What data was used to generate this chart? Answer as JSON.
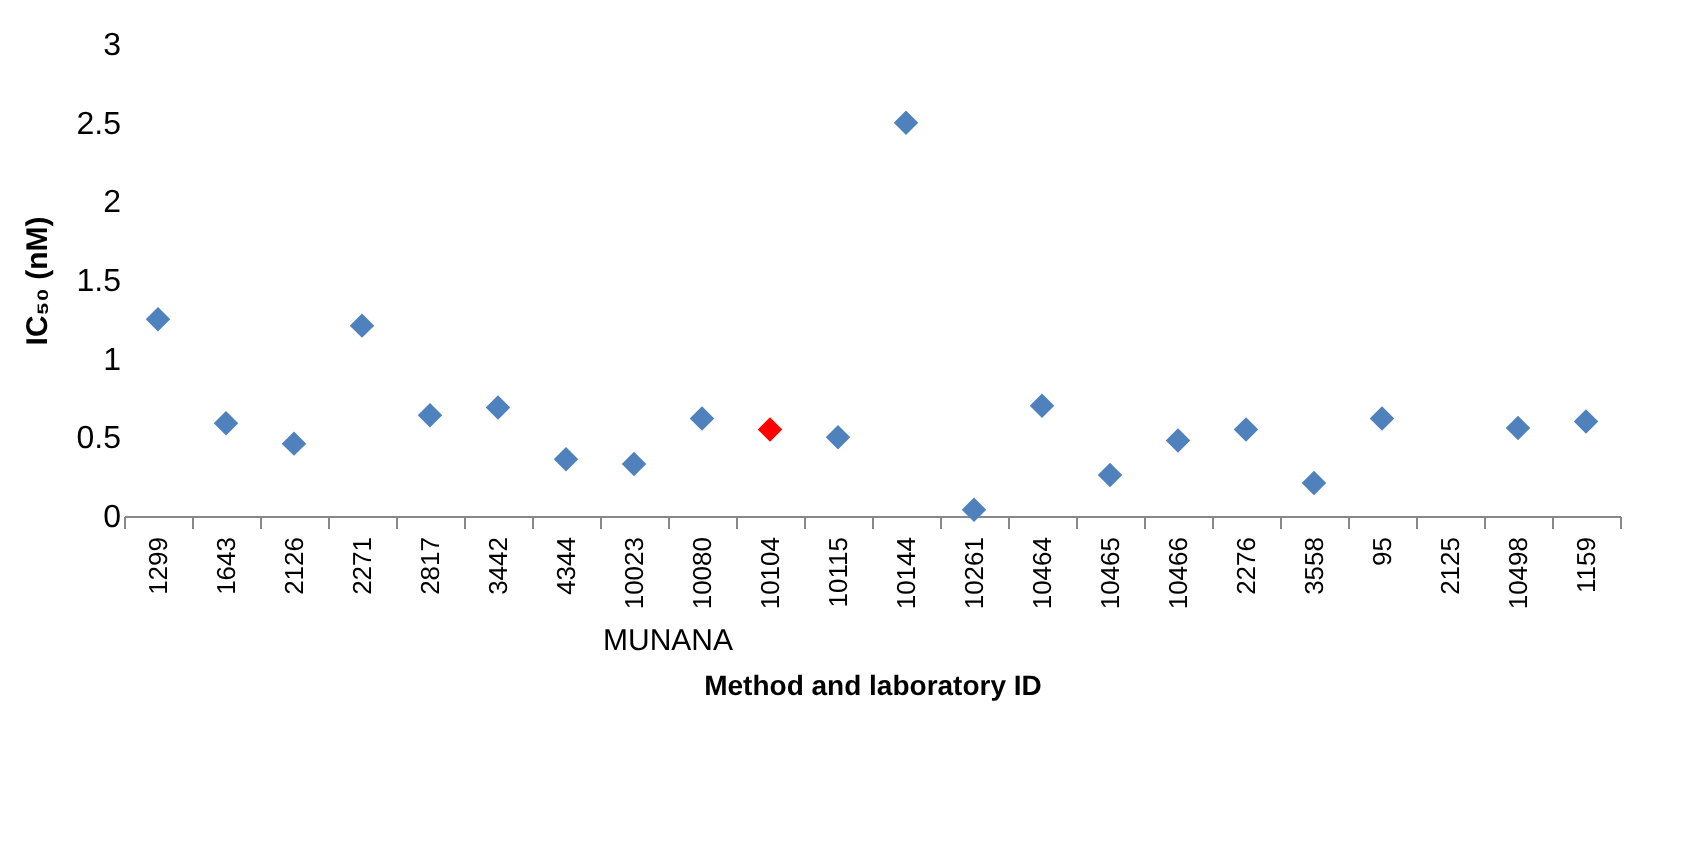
{
  "chart_data": {
    "type": "scatter",
    "xlabel": "Method and laboratory ID",
    "ylabel": "IC₅₀ (nM)",
    "categories": [
      "1299",
      "1643",
      "2126",
      "2271",
      "2817",
      "3442",
      "4344",
      "10023",
      "10080",
      "10104",
      "10115",
      "10144",
      "10261",
      "10464",
      "10465",
      "10466",
      "2276",
      "3558",
      "95",
      "2125",
      "10498",
      "1159"
    ],
    "series": [
      {
        "color": "#4f81bd",
        "values": [
          1.25,
          0.59,
          0.46,
          1.21,
          0.64,
          0.69,
          0.36,
          0.33,
          0.62,
          null,
          0.5,
          2.5,
          0.04,
          0.7,
          0.26,
          0.48,
          0.55,
          0.21,
          0.62,
          null,
          0.56,
          0.6
        ]
      },
      {
        "color": "#ff0000",
        "values": [
          null,
          null,
          null,
          null,
          null,
          null,
          null,
          null,
          null,
          0.55,
          null,
          null,
          null,
          null,
          null,
          null,
          null,
          null,
          null,
          null,
          null,
          null
        ]
      }
    ],
    "ylim": [
      0,
      3
    ],
    "yticks": [
      0,
      0.5,
      1,
      1.5,
      2,
      2.5,
      3
    ],
    "marker": "diamond",
    "grid": false,
    "annotations": [
      "MUNANA"
    ]
  }
}
